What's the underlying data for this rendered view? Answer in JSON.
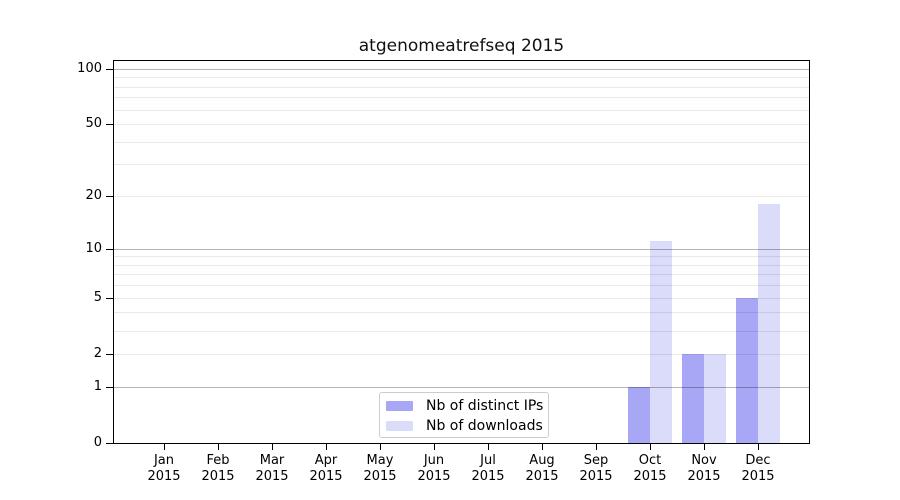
{
  "title": "atgenomeatrefseq 2015",
  "y_axis": {
    "tick_values": [
      0,
      1,
      2,
      5,
      10,
      20,
      50,
      100
    ],
    "tick_labels": [
      "0",
      "1",
      "2",
      "5",
      "10",
      "20",
      "50",
      "100"
    ]
  },
  "x_axis": {
    "months": [
      "Jan",
      "Feb",
      "Mar",
      "Apr",
      "May",
      "Jun",
      "Jul",
      "Aug",
      "Sep",
      "Oct",
      "Nov",
      "Dec"
    ],
    "years": [
      "2015",
      "2015",
      "2015",
      "2015",
      "2015",
      "2015",
      "2015",
      "2015",
      "2015",
      "2015",
      "2015",
      "2015"
    ]
  },
  "legend": {
    "items": [
      {
        "label": "Nb of distinct IPs",
        "color": "#a7a7f5"
      },
      {
        "label": "Nb of downloads",
        "color": "#dbdbfa"
      }
    ]
  },
  "chart_data": {
    "type": "bar",
    "title": "atgenomeatrefseq 2015",
    "categories": [
      "Jan 2015",
      "Feb 2015",
      "Mar 2015",
      "Apr 2015",
      "May 2015",
      "Jun 2015",
      "Jul 2015",
      "Aug 2015",
      "Sep 2015",
      "Oct 2015",
      "Nov 2015",
      "Dec 2015"
    ],
    "series": [
      {
        "name": "Nb of distinct IPs",
        "color": "#a7a7f5",
        "values": [
          0,
          0,
          0,
          0,
          0,
          0,
          0,
          0,
          0,
          1,
          2,
          5
        ]
      },
      {
        "name": "Nb of downloads",
        "color": "#dbdbfa",
        "values": [
          0,
          0,
          0,
          0,
          0,
          0,
          0,
          0,
          0,
          11,
          2,
          18
        ]
      }
    ],
    "xlabel": "",
    "ylabel": "",
    "y_scale": "log10(1+y)",
    "ylim": [
      0,
      110
    ],
    "y_ticks": [
      0,
      1,
      2,
      5,
      10,
      20,
      50,
      100
    ],
    "grid": {
      "on": true,
      "drawn_above_bars": true,
      "major_values": [
        1,
        10,
        100
      ],
      "minor_values": [
        2,
        3,
        4,
        5,
        6,
        7,
        8,
        9,
        20,
        30,
        40,
        50,
        60,
        70,
        80,
        90
      ],
      "major_color": "rgba(0,0,0,0.29)",
      "minor_color": "rgba(0,0,0,0.085)"
    },
    "legend_position": "lower center",
    "bar_colors": {
      "distinct_ips": "#a7a7f5",
      "downloads": "#dbdbfa"
    }
  }
}
